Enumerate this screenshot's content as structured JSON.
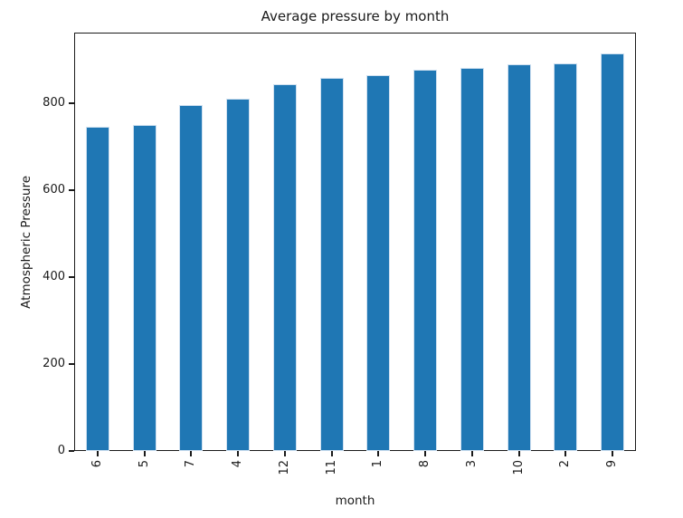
{
  "chart_data": {
    "type": "bar",
    "title": "Average pressure by month",
    "xlabel": "month",
    "ylabel": "Atmospheric Pressure",
    "categories": [
      "6",
      "5",
      "7",
      "4",
      "12",
      "11",
      "1",
      "8",
      "3",
      "10",
      "2",
      "9"
    ],
    "values": [
      746,
      751,
      796,
      810,
      845,
      858,
      864,
      878,
      881,
      890,
      893,
      916
    ],
    "yticks": [
      0,
      200,
      400,
      600,
      800
    ],
    "ylim": [
      0,
      963
    ],
    "xtick_rotation": 90,
    "grid": false,
    "legend": "none",
    "colors": {
      "bar": "#1f77b4",
      "axis": "#1a1a1a",
      "background": "#ffffff"
    }
  }
}
